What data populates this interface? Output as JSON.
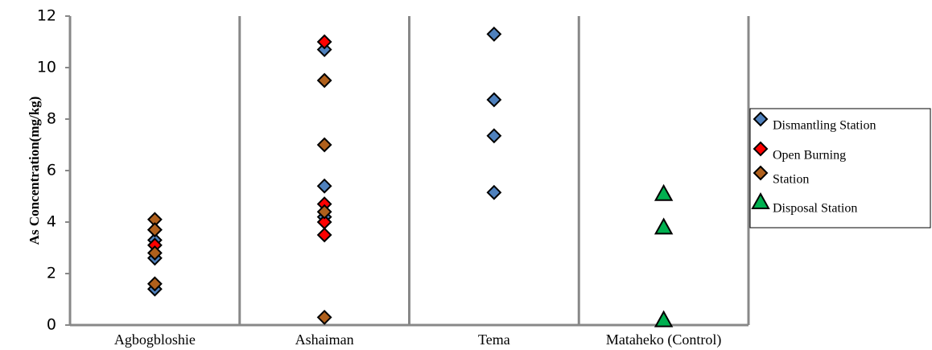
{
  "chart_data": {
    "type": "strip",
    "y_label": "As Concentration(mg/kg)",
    "categories": [
      "Agbogbloshie",
      "Ashaiman",
      "Tema",
      "Mataheko (Control)"
    ],
    "ylim": [
      0,
      12
    ],
    "yticks": [
      0,
      2,
      4,
      6,
      8,
      10,
      12
    ],
    "series": [
      {
        "name": "Dismantling Station",
        "color": "#4f81bd",
        "marker": "diamond",
        "x": [
          "Agbogbloshie",
          "Agbogbloshie",
          "Agbogbloshie",
          "Agbogbloshie",
          "Ashaiman",
          "Ashaiman",
          "Ashaiman",
          "Tema",
          "Tema",
          "Tema",
          "Tema"
        ],
        "values": [
          1.4,
          2.6,
          3.3,
          3.7,
          10.7,
          5.4,
          4.2,
          11.3,
          8.75,
          7.35,
          5.15
        ]
      },
      {
        "name": "Open Burning",
        "color": "#ff0000",
        "marker": "diamond",
        "x": [
          "Agbogbloshie",
          "Ashaiman",
          "Ashaiman",
          "Ashaiman",
          "Ashaiman"
        ],
        "values": [
          3.1,
          11.0,
          4.7,
          4.0,
          3.5
        ]
      },
      {
        "name": "Station",
        "color": "#b0601c",
        "marker": "diamond",
        "x": [
          "Agbogbloshie",
          "Agbogbloshie",
          "Agbogbloshie",
          "Agbogbloshie",
          "Ashaiman",
          "Ashaiman",
          "Ashaiman",
          "Ashaiman"
        ],
        "values": [
          4.1,
          3.7,
          2.8,
          1.6,
          9.5,
          7.0,
          4.4,
          0.3
        ]
      },
      {
        "name": "Disposal Station",
        "color": "#00b050",
        "marker": "triangle",
        "x": [
          "Mataheko (Control)",
          "Mataheko (Control)",
          "Mataheko (Control)"
        ],
        "values": [
          5.1,
          3.8,
          0.2
        ]
      }
    ]
  }
}
